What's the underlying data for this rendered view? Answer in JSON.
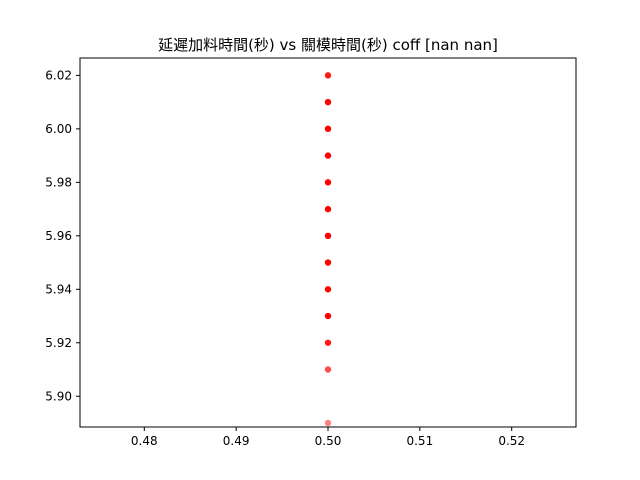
{
  "chart_data": {
    "type": "scatter",
    "title": "延遲加料時間(秒) vs 關模時間(秒) coff [nan nan]",
    "xlabel": "",
    "ylabel": "",
    "xlim": [
      0.473,
      0.527
    ],
    "ylim": [
      5.8885,
      6.0265
    ],
    "x_ticks": [
      0.48,
      0.49,
      0.5,
      0.51,
      0.52
    ],
    "x_tick_labels": [
      "0.48",
      "0.49",
      "0.50",
      "0.51",
      "0.52"
    ],
    "y_ticks": [
      5.9,
      5.92,
      5.94,
      5.96,
      5.98,
      6.0,
      6.02
    ],
    "y_tick_labels": [
      "5.90",
      "5.92",
      "5.94",
      "5.96",
      "5.98",
      "6.00",
      "6.02"
    ],
    "grid": false,
    "marker_color": "#ff0000",
    "points": [
      {
        "x": 0.5,
        "y": 5.89,
        "opacity": 0.5
      },
      {
        "x": 0.5,
        "y": 5.91,
        "opacity": 0.7
      },
      {
        "x": 0.5,
        "y": 5.92,
        "opacity": 0.9
      },
      {
        "x": 0.5,
        "y": 5.93,
        "opacity": 1.0
      },
      {
        "x": 0.5,
        "y": 5.94,
        "opacity": 1.0
      },
      {
        "x": 0.5,
        "y": 5.95,
        "opacity": 1.0
      },
      {
        "x": 0.5,
        "y": 5.96,
        "opacity": 1.0
      },
      {
        "x": 0.5,
        "y": 5.97,
        "opacity": 1.0
      },
      {
        "x": 0.5,
        "y": 5.98,
        "opacity": 1.0
      },
      {
        "x": 0.5,
        "y": 5.99,
        "opacity": 1.0
      },
      {
        "x": 0.5,
        "y": 6.0,
        "opacity": 1.0
      },
      {
        "x": 0.5,
        "y": 6.01,
        "opacity": 1.0
      },
      {
        "x": 0.5,
        "y": 6.02,
        "opacity": 0.9
      }
    ]
  }
}
